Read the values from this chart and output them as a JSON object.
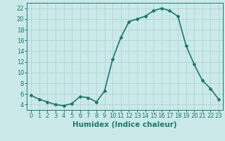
{
  "x": [
    0,
    1,
    2,
    3,
    4,
    5,
    6,
    7,
    8,
    9,
    10,
    11,
    12,
    13,
    14,
    15,
    16,
    17,
    18,
    19,
    20,
    21,
    22,
    23
  ],
  "y": [
    5.7,
    5.0,
    4.5,
    4.0,
    3.8,
    4.2,
    5.5,
    5.3,
    4.5,
    6.5,
    12.5,
    16.5,
    19.5,
    20.0,
    20.5,
    21.5,
    22.0,
    21.5,
    20.5,
    15.0,
    11.5,
    8.5,
    7.0,
    5.0
  ],
  "line_color": "#1a7a6a",
  "marker": "D",
  "marker_size": 2,
  "bg_color": "#cce9e9",
  "grid_color": "#b0d4d4",
  "xlabel": "Humidex (Indice chaleur)",
  "ylim": [
    3,
    23
  ],
  "xlim": [
    -0.5,
    23.5
  ],
  "yticks": [
    4,
    6,
    8,
    10,
    12,
    14,
    16,
    18,
    20,
    22
  ],
  "tick_fontsize": 6,
  "xlabel_fontsize": 7.5,
  "linewidth": 1.2
}
